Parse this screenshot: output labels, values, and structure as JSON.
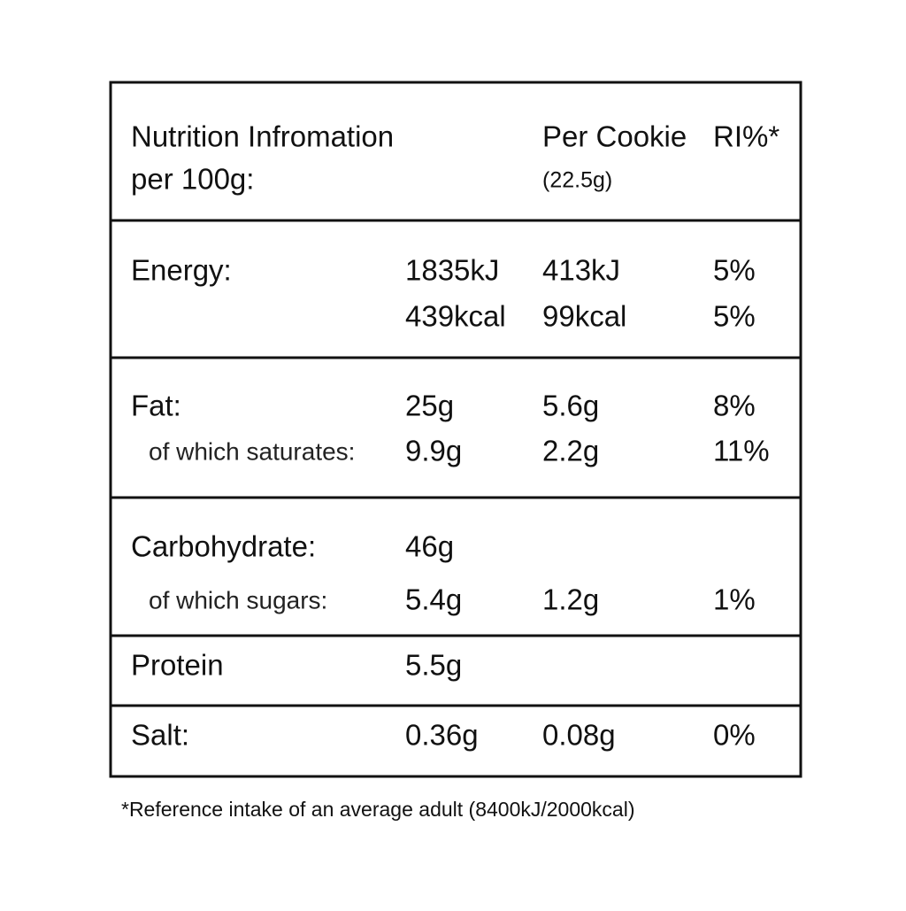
{
  "header": {
    "title": "Nutrition Infromation",
    "per": "per 100g:",
    "per_cookie": "Per Cookie",
    "serving": "(22.5g)",
    "ri": "RI%*"
  },
  "sections": [
    {
      "lines": [
        {
          "label": "Energy:",
          "per_100g": "1835kJ",
          "per_cookie": "413kJ",
          "ri": "5%"
        },
        {
          "per_100g": "439kcal",
          "per_cookie": "99kcal",
          "ri": "5%"
        }
      ]
    },
    {
      "lines": [
        {
          "label": "Fat:",
          "per_100g": "25g",
          "per_cookie": "5.6g",
          "ri": "8%"
        },
        {
          "label": "of which saturates:",
          "per_100g": "9.9g",
          "per_cookie": "2.2g",
          "ri": "11%"
        }
      ]
    },
    {
      "lines": [
        {
          "label": "Carbohydrate:",
          "per_100g": "46g"
        },
        {
          "label": "of which sugars:",
          "per_100g": "5.4g",
          "per_cookie": "1.2g",
          "ri": "1%"
        }
      ]
    },
    {
      "lines": [
        {
          "label": "Protein",
          "per_100g": "5.5g"
        }
      ]
    },
    {
      "lines": [
        {
          "label": "Salt:",
          "per_100g": "0.36g",
          "per_cookie": "0.08g",
          "ri": "0%"
        }
      ]
    }
  ],
  "footnote": "*Reference intake of an average adult (8400kJ/2000kcal)"
}
